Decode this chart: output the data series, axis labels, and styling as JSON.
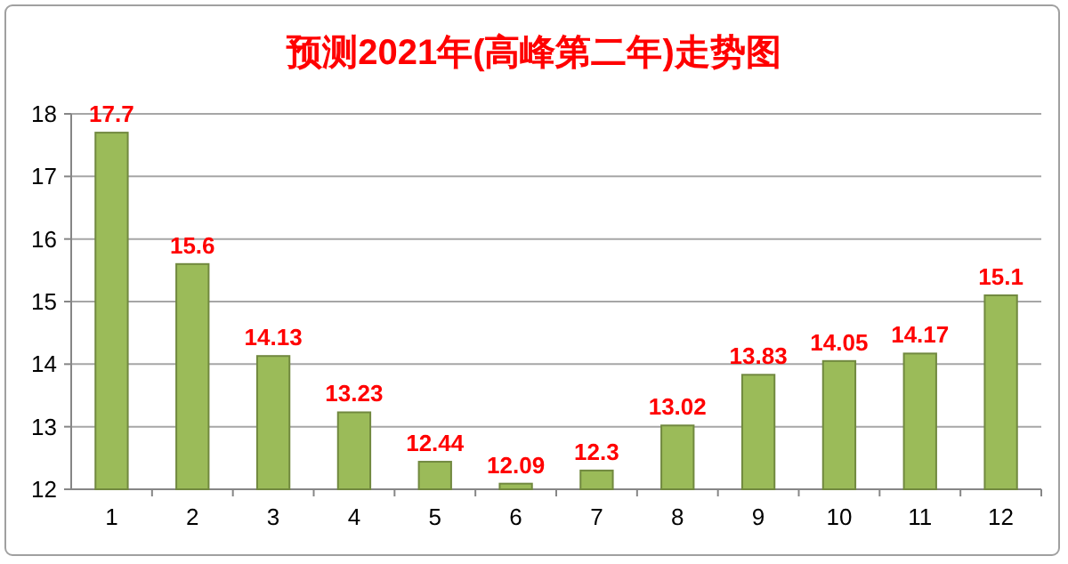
{
  "chart_data": {
    "type": "bar",
    "title": "预测2021年(高峰第二年)走势图",
    "categories": [
      "1",
      "2",
      "3",
      "4",
      "5",
      "6",
      "7",
      "8",
      "9",
      "10",
      "11",
      "12"
    ],
    "values": [
      17.7,
      15.6,
      14.13,
      13.23,
      12.44,
      12.09,
      12.3,
      13.02,
      13.83,
      14.05,
      14.17,
      15.1
    ],
    "color": "#9bbb59",
    "ylim": [
      12,
      18
    ],
    "yticks": [
      12,
      13,
      14,
      15,
      16,
      17,
      18
    ],
    "grid": "y",
    "data_labels": true
  }
}
